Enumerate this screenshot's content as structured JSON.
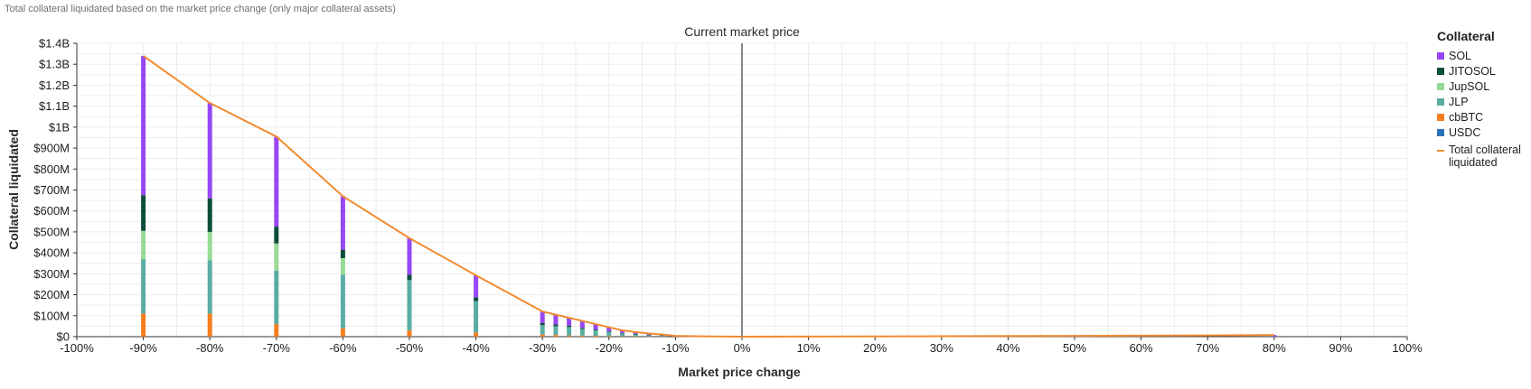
{
  "chart_data": {
    "type": "bar",
    "stacked": true,
    "title": "Total collateral liquidated based on the market price change (only major collateral assets)",
    "xlabel": "Market price change",
    "ylabel": "Collateral liquidated",
    "xlim": [
      -100,
      100
    ],
    "ylim": [
      0,
      1400
    ],
    "x_unit": "%",
    "y_unit": "USD millions",
    "x_ticks": [
      "-100%",
      "-90%",
      "-80%",
      "-70%",
      "-60%",
      "-50%",
      "-40%",
      "-30%",
      "-20%",
      "-10%",
      "0%",
      "10%",
      "20%",
      "30%",
      "40%",
      "50%",
      "60%",
      "70%",
      "80%",
      "90%",
      "100%"
    ],
    "y_ticks": [
      "$0",
      "$100M",
      "$200M",
      "$300M",
      "$400M",
      "$500M",
      "$600M",
      "$700M",
      "$800M",
      "$900M",
      "$1B",
      "$1.1B",
      "$1.2B",
      "$1.3B",
      "$1.4B"
    ],
    "grid": true,
    "annotation": {
      "label": "Current market price",
      "x": 0
    },
    "legend": {
      "title": "Collateral",
      "position": "right"
    },
    "x": [
      -90,
      -80,
      -70,
      -60,
      -50,
      -40,
      -30,
      -28,
      -26,
      -24,
      -22,
      -20,
      -18,
      -16,
      -14,
      -12,
      -10,
      80
    ],
    "series": [
      {
        "name": "cbBTC",
        "color": "#f57e20",
        "values": [
          110,
          110,
          60,
          40,
          30,
          20,
          10,
          8,
          6,
          5,
          4,
          3,
          2,
          2,
          1,
          1,
          0,
          0
        ]
      },
      {
        "name": "JLP",
        "color": "#5aada3",
        "values": [
          260,
          255,
          255,
          255,
          240,
          150,
          45,
          42,
          40,
          32,
          26,
          20,
          14,
          10,
          6,
          4,
          2,
          0
        ]
      },
      {
        "name": "JupSOL",
        "color": "#98d996",
        "values": [
          135,
          135,
          130,
          80,
          0,
          0,
          0,
          0,
          0,
          0,
          0,
          0,
          0,
          0,
          0,
          0,
          0,
          0
        ]
      },
      {
        "name": "JITOSOL",
        "color": "#0c4e3a",
        "values": [
          170,
          160,
          80,
          40,
          25,
          18,
          10,
          8,
          6,
          5,
          4,
          3,
          2,
          1,
          1,
          1,
          0,
          0
        ]
      },
      {
        "name": "SOL",
        "color": "#9747f5",
        "values": [
          665,
          455,
          430,
          255,
          175,
          105,
          55,
          47,
          38,
          33,
          26,
          19,
          12,
          9,
          7,
          4,
          2,
          8
        ]
      },
      {
        "name": "USDC",
        "color": "#2d72b8",
        "values": [
          0,
          0,
          0,
          0,
          0,
          0,
          0,
          0,
          0,
          0,
          0,
          0,
          0,
          0,
          0,
          0,
          0,
          0
        ]
      }
    ],
    "legend_order": [
      "SOL",
      "JITOSOL",
      "JupSOL",
      "JLP",
      "cbBTC",
      "USDC"
    ],
    "total_line": {
      "name": "Total collateral liquidated",
      "color": "#f28b30",
      "x": [
        -90,
        -80,
        -70,
        -60,
        -50,
        -40,
        -30,
        -28,
        -26,
        -24,
        -22,
        -20,
        -18,
        -16,
        -14,
        -12,
        -10,
        -5,
        0,
        10,
        20,
        30,
        40,
        50,
        60,
        70,
        80
      ],
      "values": [
        1340,
        1115,
        955,
        670,
        470,
        293,
        120,
        105,
        90,
        75,
        60,
        45,
        30,
        22,
        15,
        10,
        4,
        1,
        0,
        0.5,
        1,
        2,
        3,
        4,
        5,
        6,
        8
      ]
    }
  }
}
